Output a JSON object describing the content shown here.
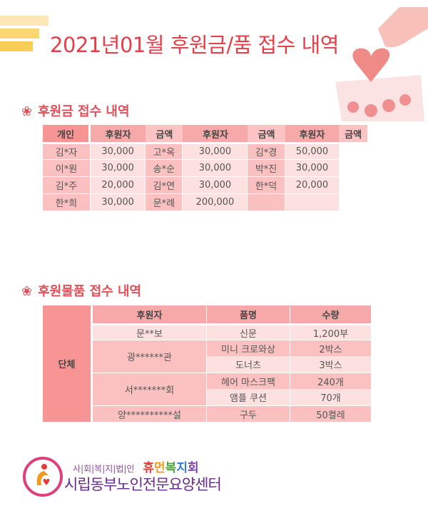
{
  "title": "2021년01월 후원금/품 접수 내역",
  "money_section": {
    "heading": "후원금 접수 내역",
    "group_label": "개인",
    "headers": [
      "후원자",
      "금액",
      "후원자",
      "금액",
      "후원자",
      "금액"
    ],
    "rows": [
      [
        "김*자",
        "30,000",
        "고*옥",
        "30,000",
        "김*경",
        "50,000"
      ],
      [
        "이*원",
        "30,000",
        "송*순",
        "30,000",
        "박*진",
        "30,000"
      ],
      [
        "김*주",
        "20,000",
        "김*연",
        "30,000",
        "한*덕",
        "20,000"
      ],
      [
        "한*희",
        "30,000",
        "문*례",
        "200,000",
        "",
        ""
      ]
    ]
  },
  "goods_section": {
    "heading": "후원물품 접수 내역",
    "group_label": "단체",
    "headers": [
      "후원자",
      "품명",
      "수량"
    ],
    "donors": [
      "문**보",
      "광******관",
      "서*******회",
      "양**********설"
    ],
    "items": [
      [
        "신문",
        "1,200부"
      ],
      [
        "미니 크로와상",
        "2박스"
      ],
      [
        "도너츠",
        "3박스"
      ],
      [
        "헤어 마스크팩",
        "240개"
      ],
      [
        "앰플 쿠션",
        "70개"
      ],
      [
        "구두",
        "50켤레"
      ]
    ]
  },
  "footer": {
    "line1_prefix": "사|회|복|지|법|인",
    "line1_name": [
      "휴",
      "먼",
      "복",
      "지",
      "회"
    ],
    "line2": "시립동부노인전문요양센터",
    "name_colors": [
      "#e33b3b",
      "#f29a1f",
      "#4aa63a",
      "#2f7fd0",
      "#7a3fb0"
    ]
  },
  "colors": {
    "accent": "#e5404a"
  }
}
